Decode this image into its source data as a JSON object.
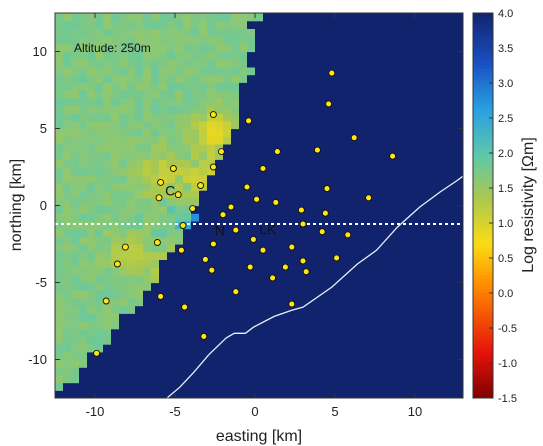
{
  "chart_data": {
    "type": "heatmap",
    "title": "",
    "annotation": "Altitude: 250m",
    "xlabel": "easting [km]",
    "ylabel": "northing [km]",
    "colorbar_label": "Log resistivity [Ωm]",
    "xlim": [
      -12.5,
      13
    ],
    "ylim": [
      -12.5,
      12.5
    ],
    "x_ticks": [
      -10,
      -5,
      0,
      5,
      10
    ],
    "y_ticks": [
      10,
      5,
      0,
      -5,
      -10
    ],
    "clim": [
      -1.5,
      4.0
    ],
    "colorbar_ticks": [
      "4.0",
      "3.5",
      "3.0",
      "2.5",
      "2.0",
      "1.5",
      "1.0",
      "0.5",
      "0.0",
      "-0.5",
      "-1.0",
      "-1.5"
    ],
    "background_value": 1.7,
    "profile_line_y": -1.2,
    "site_labels": [
      {
        "text": "C",
        "x": -5.3,
        "y": 0.9
      },
      {
        "text": "N",
        "x": -2.2,
        "y": -1.7
      },
      {
        "text": "LK",
        "x": 0.8,
        "y": -1.6
      }
    ],
    "stations": [
      [
        4.8,
        8.6
      ],
      [
        4.6,
        6.6
      ],
      [
        -2.6,
        5.9
      ],
      [
        -0.4,
        5.5
      ],
      [
        6.2,
        4.4
      ],
      [
        3.9,
        3.6
      ],
      [
        -2.1,
        3.5
      ],
      [
        1.4,
        3.5
      ],
      [
        8.6,
        3.2
      ],
      [
        -5.1,
        2.4
      ],
      [
        -2.6,
        2.5
      ],
      [
        0.5,
        2.4
      ],
      [
        -5.9,
        1.5
      ],
      [
        -3.4,
        1.3
      ],
      [
        -0.5,
        1.2
      ],
      [
        4.5,
        1.1
      ],
      [
        -4.8,
        0.7
      ],
      [
        -6.0,
        0.5
      ],
      [
        7.1,
        0.5
      ],
      [
        0.1,
        0.4
      ],
      [
        1.3,
        0.2
      ],
      [
        -3.9,
        -0.2
      ],
      [
        -1.5,
        -0.1
      ],
      [
        -2.0,
        -0.6
      ],
      [
        2.9,
        -0.3
      ],
      [
        4.4,
        -0.5
      ],
      [
        -4.5,
        -1.3
      ],
      [
        3.0,
        -1.2
      ],
      [
        -1.2,
        -1.6
      ],
      [
        -6.1,
        -2.4
      ],
      [
        -0.1,
        -2.2
      ],
      [
        -4.6,
        -2.9
      ],
      [
        0.5,
        -2.9
      ],
      [
        2.3,
        -2.7
      ],
      [
        -2.6,
        -2.5
      ],
      [
        4.2,
        -1.7
      ],
      [
        5.8,
        -1.9
      ],
      [
        -8.1,
        -2.7
      ],
      [
        -3.1,
        -3.5
      ],
      [
        3.0,
        -3.6
      ],
      [
        5.1,
        -3.4
      ],
      [
        -8.6,
        -3.8
      ],
      [
        -0.3,
        -4.0
      ],
      [
        1.9,
        -4.0
      ],
      [
        -2.7,
        -4.2
      ],
      [
        3.2,
        -4.3
      ],
      [
        1.1,
        -4.7
      ],
      [
        -1.2,
        -5.6
      ],
      [
        -5.9,
        -5.9
      ],
      [
        -9.3,
        -6.2
      ],
      [
        -4.4,
        -6.6
      ],
      [
        2.3,
        -6.4
      ],
      [
        -3.2,
        -8.5
      ],
      [
        -9.9,
        -9.6
      ]
    ],
    "coastline": [
      [
        -5.5,
        -12.5
      ],
      [
        -4.7,
        -11.8
      ],
      [
        -3.8,
        -10.8
      ],
      [
        -2.9,
        -9.7
      ],
      [
        -1.8,
        -8.6
      ],
      [
        -1.3,
        -8.3
      ],
      [
        -0.6,
        -8.3
      ],
      [
        -0.1,
        -7.9
      ],
      [
        1.2,
        -7.2
      ],
      [
        2.3,
        -6.8
      ],
      [
        3.0,
        -6.6
      ],
      [
        4.8,
        -5.3
      ],
      [
        6.4,
        -3.8
      ],
      [
        7.6,
        -2.9
      ],
      [
        8.9,
        -1.4
      ],
      [
        10.3,
        -0.1
      ],
      [
        11.6,
        0.9
      ],
      [
        12.6,
        1.6
      ],
      [
        13.0,
        1.9
      ]
    ]
  }
}
